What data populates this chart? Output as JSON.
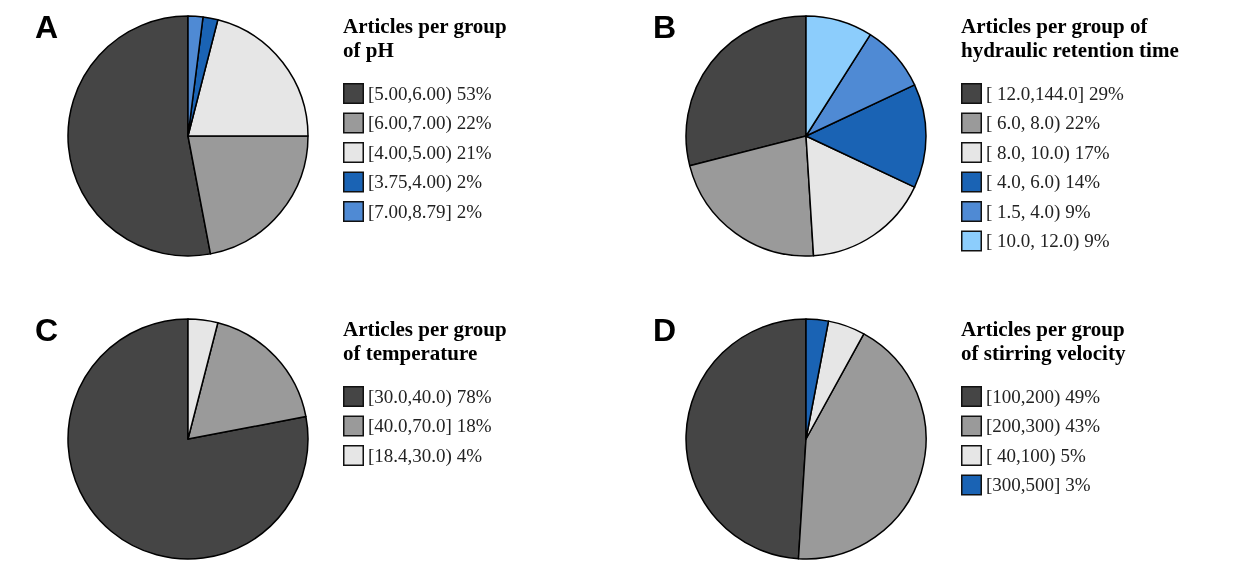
{
  "chart_data": [
    {
      "type": "pie",
      "legend_title": "Articles per group\n of pH",
      "legend": "right",
      "annotations": [
        "A"
      ],
      "categories": [
        "[5.00,6.00)",
        "[6.00,7.00)",
        "[4.00,5.00)",
        "[3.75,4.00)",
        "[7.00,8.79]"
      ],
      "values": [
        53,
        22,
        21,
        2,
        2
      ],
      "value_labels": [
        "53%",
        "22%",
        "21%",
        "2%",
        "2%"
      ],
      "colors": [
        "#454545",
        "#9a9a9a",
        "#e6e6e6",
        "#1a63b4",
        "#4f8ad4"
      ]
    },
    {
      "type": "pie",
      "legend_title": "Articles per group of\n hydraulic retention time",
      "legend": "right",
      "annotations": [
        "B"
      ],
      "categories": [
        "[ 12.0,144.0]",
        "[  6.0,  8.0)",
        "[  8.0, 10.0)",
        "[  4.0,  6.0)",
        "[  1.5,  4.0)",
        "[ 10.0, 12.0)"
      ],
      "values": [
        29,
        22,
        17,
        14,
        9,
        9
      ],
      "value_labels": [
        "29%",
        "22%",
        "17%",
        "14%",
        "9%",
        "9%"
      ],
      "colors": [
        "#454545",
        "#9a9a9a",
        "#e6e6e6",
        "#1a63b4",
        "#4f8ad4",
        "#8ccdfc"
      ]
    },
    {
      "type": "pie",
      "legend_title": "Articles per group\n of temperature",
      "legend": "right",
      "annotations": [
        "C"
      ],
      "categories": [
        "[30.0,40.0)",
        "[40.0,70.0]",
        "[18.4,30.0)"
      ],
      "values": [
        78,
        18,
        4
      ],
      "value_labels": [
        "78%",
        "18%",
        "4%"
      ],
      "colors": [
        "#454545",
        "#9a9a9a",
        "#e6e6e6"
      ]
    },
    {
      "type": "pie",
      "legend_title": "Articles per group\n of stirring velocity",
      "legend": "right",
      "annotations": [
        "D"
      ],
      "categories": [
        "[100,200)",
        "[200,300)",
        "[ 40,100)",
        "[300,500]"
      ],
      "values": [
        49,
        43,
        5,
        3
      ],
      "value_labels": [
        "49%",
        "43%",
        "5%",
        "3%"
      ],
      "colors": [
        "#454545",
        "#9a9a9a",
        "#e6e6e6",
        "#1a63b4"
      ]
    }
  ]
}
